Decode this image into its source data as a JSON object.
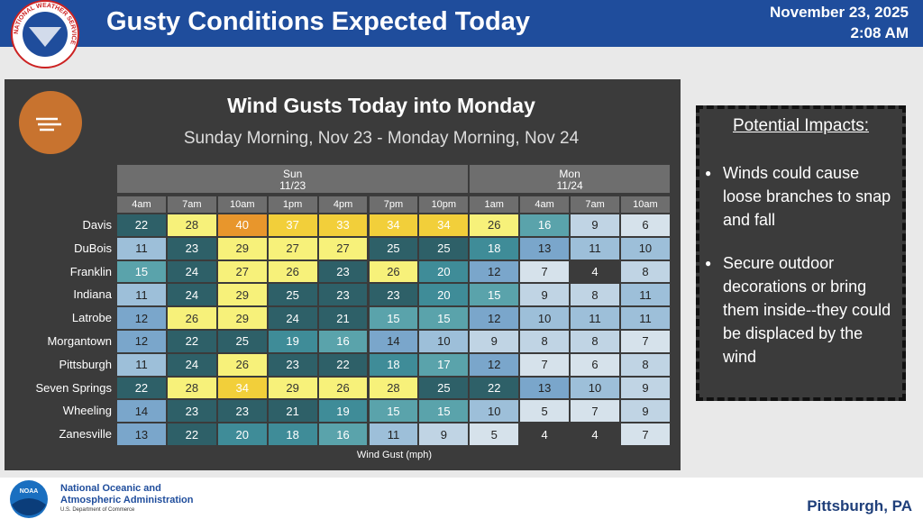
{
  "header": {
    "logo_text": "NATIONAL WEATHER SERVICE",
    "title": "Gusty Conditions Expected Today",
    "date": "November 23, 2025",
    "time": "2:08 AM"
  },
  "panel": {
    "title": "Wind Gusts Today into Monday",
    "subtitle": "Sunday Morning, Nov 23 - Monday Morning, Nov 24",
    "days": [
      {
        "name": "Sun",
        "date": "11/23",
        "hours": [
          "4am",
          "7am",
          "10am",
          "1pm",
          "4pm",
          "7pm",
          "10pm"
        ]
      },
      {
        "name": "Mon",
        "date": "11/24",
        "hours": [
          "1am",
          "4am",
          "7am",
          "10am"
        ]
      }
    ],
    "rows": [
      {
        "name": "Davis",
        "values": [
          22,
          28,
          40,
          37,
          33,
          34,
          34,
          26,
          16,
          9,
          6
        ]
      },
      {
        "name": "DuBois",
        "values": [
          11,
          23,
          29,
          27,
          27,
          25,
          25,
          18,
          13,
          11,
          10
        ]
      },
      {
        "name": "Franklin",
        "values": [
          15,
          24,
          27,
          26,
          23,
          26,
          20,
          12,
          7,
          4,
          8
        ]
      },
      {
        "name": "Indiana",
        "values": [
          11,
          24,
          29,
          25,
          23,
          23,
          20,
          15,
          9,
          8,
          11
        ]
      },
      {
        "name": "Latrobe",
        "values": [
          12,
          26,
          29,
          24,
          21,
          15,
          15,
          12,
          10,
          11,
          11
        ]
      },
      {
        "name": "Morgantown",
        "values": [
          12,
          22,
          25,
          19,
          16,
          14,
          10,
          9,
          8,
          8,
          7
        ]
      },
      {
        "name": "Pittsburgh",
        "values": [
          11,
          24,
          26,
          23,
          22,
          18,
          17,
          12,
          7,
          6,
          8
        ]
      },
      {
        "name": "Seven Springs",
        "values": [
          22,
          28,
          34,
          29,
          26,
          28,
          25,
          22,
          13,
          10,
          9
        ]
      },
      {
        "name": "Wheeling",
        "values": [
          14,
          23,
          23,
          21,
          19,
          15,
          15,
          10,
          5,
          7,
          9
        ]
      },
      {
        "name": "Zanesville",
        "values": [
          13,
          22,
          20,
          18,
          16,
          11,
          9,
          5,
          4,
          4,
          7
        ]
      }
    ],
    "footer": "Wind Gust (mph)"
  },
  "impacts": {
    "heading": "Potential Impacts:",
    "bullets": [
      "Winds could cause loose branches to snap and fall",
      "Secure outdoor decorations or bring them inside--they could be displaced by the wind"
    ]
  },
  "footer": {
    "noaa_logo": "NOAA",
    "agency_line1": "National Oceanic and",
    "agency_line2": "Atmospheric Administration",
    "department": "U.S. Department of Commerce",
    "location": "Pittsburgh, PA"
  }
}
